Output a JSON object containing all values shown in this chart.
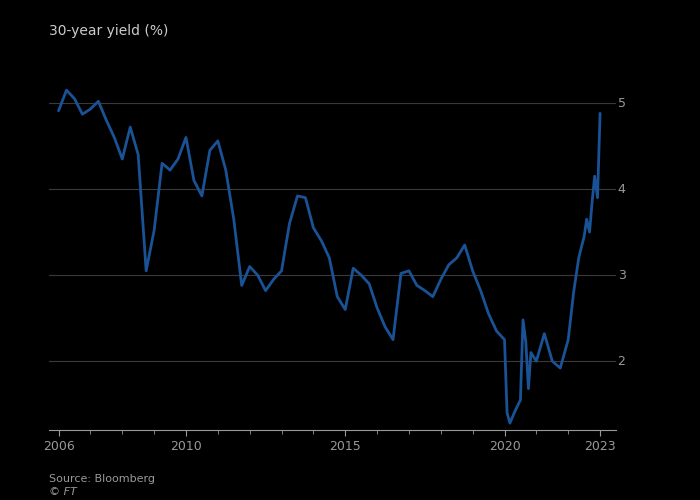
{
  "title": "30-year yield (%)",
  "source": "Source: Bloomberg",
  "copyright": "© FT",
  "line_color": "#1a5296",
  "line_width": 2.0,
  "background_color": "#000000",
  "plot_bg_color": "#000000",
  "grid_color": "#3a3a3a",
  "text_color": "#999999",
  "title_color": "#cccccc",
  "ylim": [
    1.2,
    5.5
  ],
  "yticks": [
    2,
    3,
    4,
    5
  ],
  "xlabel_years": [
    2006,
    2010,
    2015,
    2020,
    2023
  ],
  "xlim": [
    2005.7,
    2023.5
  ],
  "data": [
    [
      2006.0,
      4.91
    ],
    [
      2006.25,
      5.15
    ],
    [
      2006.5,
      5.05
    ],
    [
      2006.75,
      4.87
    ],
    [
      2007.0,
      4.93
    ],
    [
      2007.25,
      5.02
    ],
    [
      2007.5,
      4.8
    ],
    [
      2007.75,
      4.6
    ],
    [
      2008.0,
      4.35
    ],
    [
      2008.25,
      4.72
    ],
    [
      2008.5,
      4.4
    ],
    [
      2008.75,
      3.05
    ],
    [
      2009.0,
      3.52
    ],
    [
      2009.25,
      4.3
    ],
    [
      2009.5,
      4.22
    ],
    [
      2009.75,
      4.35
    ],
    [
      2010.0,
      4.6
    ],
    [
      2010.25,
      4.1
    ],
    [
      2010.5,
      3.92
    ],
    [
      2010.75,
      4.45
    ],
    [
      2011.0,
      4.56
    ],
    [
      2011.25,
      4.22
    ],
    [
      2011.5,
      3.65
    ],
    [
      2011.75,
      2.88
    ],
    [
      2012.0,
      3.1
    ],
    [
      2012.25,
      3.0
    ],
    [
      2012.5,
      2.82
    ],
    [
      2012.75,
      2.95
    ],
    [
      2013.0,
      3.05
    ],
    [
      2013.25,
      3.6
    ],
    [
      2013.5,
      3.92
    ],
    [
      2013.75,
      3.9
    ],
    [
      2014.0,
      3.55
    ],
    [
      2014.25,
      3.4
    ],
    [
      2014.5,
      3.2
    ],
    [
      2014.75,
      2.75
    ],
    [
      2015.0,
      2.6
    ],
    [
      2015.25,
      3.08
    ],
    [
      2015.5,
      3.0
    ],
    [
      2015.75,
      2.9
    ],
    [
      2016.0,
      2.62
    ],
    [
      2016.25,
      2.4
    ],
    [
      2016.5,
      2.25
    ],
    [
      2016.75,
      3.02
    ],
    [
      2017.0,
      3.05
    ],
    [
      2017.25,
      2.88
    ],
    [
      2017.5,
      2.82
    ],
    [
      2017.75,
      2.75
    ],
    [
      2018.0,
      2.95
    ],
    [
      2018.25,
      3.12
    ],
    [
      2018.5,
      3.2
    ],
    [
      2018.75,
      3.35
    ],
    [
      2019.0,
      3.05
    ],
    [
      2019.25,
      2.82
    ],
    [
      2019.5,
      2.55
    ],
    [
      2019.75,
      2.35
    ],
    [
      2020.0,
      2.25
    ],
    [
      2020.08,
      1.4
    ],
    [
      2020.17,
      1.28
    ],
    [
      2020.33,
      1.42
    ],
    [
      2020.5,
      1.55
    ],
    [
      2020.58,
      2.48
    ],
    [
      2020.67,
      2.22
    ],
    [
      2020.75,
      1.68
    ],
    [
      2020.83,
      2.1
    ],
    [
      2021.0,
      2.0
    ],
    [
      2021.25,
      2.32
    ],
    [
      2021.5,
      2.0
    ],
    [
      2021.75,
      1.92
    ],
    [
      2022.0,
      2.25
    ],
    [
      2022.17,
      2.8
    ],
    [
      2022.33,
      3.2
    ],
    [
      2022.5,
      3.45
    ],
    [
      2022.58,
      3.65
    ],
    [
      2022.67,
      3.5
    ],
    [
      2022.75,
      3.85
    ],
    [
      2022.83,
      4.15
    ],
    [
      2022.92,
      3.9
    ],
    [
      2023.0,
      4.88
    ]
  ]
}
